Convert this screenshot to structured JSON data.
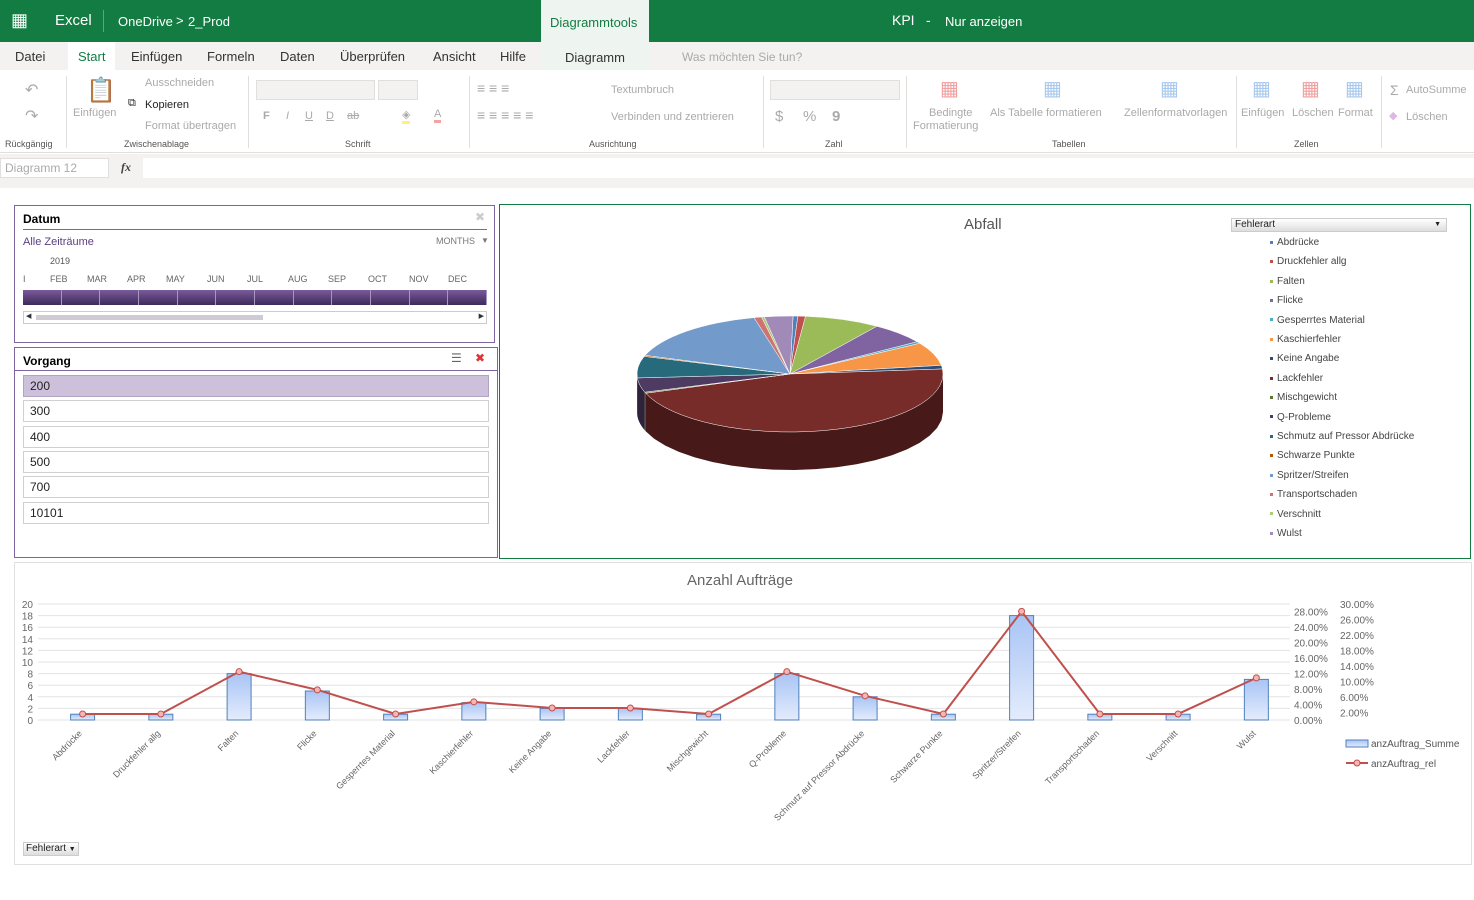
{
  "header": {
    "app": "Excel",
    "breadcrumb_root": "OneDrive",
    "breadcrumb_sep": ">",
    "breadcrumb_folder": "2_Prod",
    "context_tab": "Diagrammtools",
    "doc_title": "KPI",
    "dash": "-",
    "mode": "Nur anzeigen"
  },
  "tabs": [
    "Datei",
    "Start",
    "Einfügen",
    "Formeln",
    "Daten",
    "Überprüfen",
    "Ansicht",
    "Hilfe",
    "Diagramm"
  ],
  "tell_me": "Was möchten Sie tun?",
  "ribbon": {
    "undo_group": "Rückgängig",
    "paste": "Einfügen",
    "cut": "Ausschneiden",
    "copy": "Kopieren",
    "format_painter": "Format übertragen",
    "clipboard_group": "Zwischenablage",
    "font_group": "Schrift",
    "wrap": "Textumbruch",
    "merge": "Verbinden und zentrieren",
    "align_group": "Ausrichtung",
    "number_group": "Zahl",
    "cond_format_1": "Bedingte",
    "cond_format_2": "Formatierung",
    "format_table": "Als Tabelle formatieren",
    "cell_styles": "Zellenformatvorlagen",
    "tables_group": "Tabellen",
    "insert": "Einfügen",
    "delete": "Löschen",
    "format": "Format",
    "cells_group": "Zellen",
    "autosum": "AutoSumme",
    "clear": "Löschen",
    "bold": "F",
    "italic": "I",
    "underline": "U",
    "dstrike": "D",
    "strike": "ab",
    "currency": "$",
    "percent": "%",
    "comma": "9"
  },
  "formula": {
    "name_box": "Diagramm 12",
    "fx": "fx",
    "value": ""
  },
  "date_slicer": {
    "title": "Datum",
    "period": "Alle Zeiträume",
    "level": "MONTHS",
    "year": "2019",
    "months": [
      "I",
      "FEB",
      "MAR",
      "APR",
      "MAY",
      "JUN",
      "JUL",
      "AUG",
      "SEP",
      "OCT",
      "NOV",
      "DEC"
    ]
  },
  "vorgang_slicer": {
    "title": "Vorgang",
    "items": [
      "200",
      "300",
      "400",
      "500",
      "700",
      "10101"
    ],
    "selected": "200"
  },
  "colors": {
    "brand": "#137c42",
    "slicer": "#8064a2",
    "bar": "#c6d9f7",
    "line": "#c0504d"
  },
  "pie_chart": {
    "title": "Abfall",
    "filter_button": "Fehlerart",
    "chart_data": {
      "type": "pie",
      "title": "Abfall",
      "categories": [
        "Abdrücke",
        "Druckfehler allg",
        "Falten",
        "Flicke",
        "Gesperrtes Material",
        "Kaschierfehler",
        "Keine Angabe",
        "Lackfehler",
        "Mischgewicht",
        "Q-Probleme",
        "Schmutz auf Pressor Abdrücke",
        "Schwarze Punkte",
        "Spritzer/Streifen",
        "Transportschaden",
        "Verschnitt",
        "Wulst"
      ],
      "values": [
        0.5,
        0.8,
        8,
        6,
        0.5,
        6.5,
        1,
        46,
        0.3,
        4,
        6,
        0.3,
        16,
        0.8,
        0.3,
        3
      ],
      "colors": [
        "#4f81bd",
        "#c0504d",
        "#9bbb59",
        "#8064a2",
        "#4bacc6",
        "#f79646",
        "#2c4d75",
        "#772c2a",
        "#5f7530",
        "#4d3b62",
        "#276a7c",
        "#b65708",
        "#729aca",
        "#cd7371",
        "#afc97a",
        "#a18ab8"
      ]
    }
  },
  "bar_chart": {
    "filter_button": "Fehlerart",
    "chart_data": {
      "type": "bar",
      "title": "Anzahl Aufträge",
      "categories": [
        "Abdrücke",
        "Druckfehler allg",
        "Falten",
        "Flicke",
        "Gesperrtes Material",
        "Kaschierfehler",
        "Keine Angabe",
        "Lackfehler",
        "Mischgewicht",
        "Q-Probleme",
        "Schmutz auf Pressor Abdrücke",
        "Schwarze Punkte",
        "Spritzer/Streifen",
        "Transportschaden",
        "Verschnitt",
        "Wulst"
      ],
      "series": [
        {
          "name": "anzAuftrag_Summe",
          "type": "bar",
          "axis": "left",
          "values": [
            1,
            1,
            8,
            5,
            1,
            3,
            2,
            2,
            1,
            8,
            4,
            1,
            18,
            1,
            1,
            7
          ]
        },
        {
          "name": "anzAuftrag_rel",
          "type": "line",
          "axis": "right",
          "values": [
            0.0156,
            0.0156,
            0.125,
            0.078,
            0.0156,
            0.047,
            0.031,
            0.031,
            0.0156,
            0.125,
            0.0625,
            0.0156,
            0.281,
            0.0156,
            0.0156,
            0.109
          ]
        }
      ],
      "ylim": [
        0,
        20
      ],
      "yticks": [
        "0",
        "2",
        "4",
        "6",
        "8",
        "10",
        "12",
        "14",
        "16",
        "18",
        "20"
      ],
      "y2lim": [
        0,
        0.3
      ],
      "y2ticks": [
        "0.00%",
        "2.00%",
        "4.00%",
        "6.00%",
        "8.00%",
        "10.00%",
        "12.00%",
        "14.00%",
        "16.00%",
        "18.00%",
        "20.00%",
        "22.00%",
        "24.00%",
        "26.00%",
        "28.00%",
        "30.00%"
      ],
      "legend": "right",
      "grid": true
    }
  }
}
